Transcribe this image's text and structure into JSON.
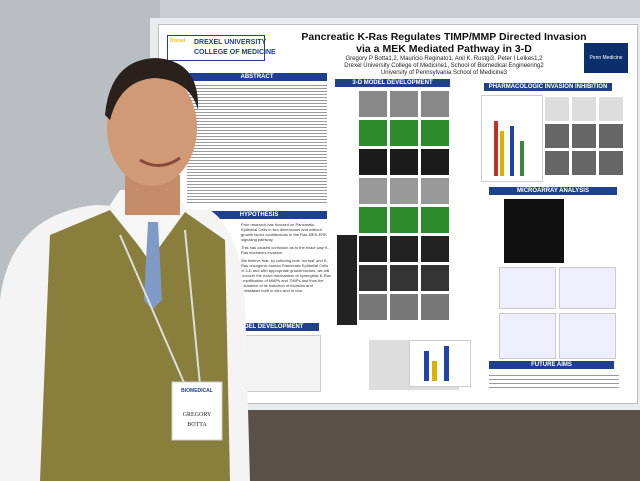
{
  "poster": {
    "logo": {
      "line1": "DREXEL UNIVERSITY",
      "line2": "COLLEGE OF MEDICINE",
      "mark": "Drexel"
    },
    "title": "Pancreatic K-Ras Regulates TIMP/MMP Directed Invasion via a MEK Mediated Pathway in 3-D",
    "authors": "Gregory P Botta1,2, Mauricio Reginato1, Anil K. Rustgi3, Peter I Lelkes1,2",
    "affiliations": [
      "Drexel University College of Medicine1, School of Biomedical Engineering2",
      "University of Pennsylvania School of Medicine3"
    ],
    "penn": "Penn Medicine",
    "sections": {
      "abstract": "ABSTRACT",
      "hypothesis": "HYPOTHESIS",
      "model_3d": "3-D MODEL DEVELOPMENT",
      "pharmacologic": "PHARMACOLOGIC INVASION INHIBITION",
      "microarray": "MICROARRAY ANALYSIS",
      "future": "FUTURE AIMS",
      "model": "MODEL DEVELOPMENT"
    },
    "hypothesis_text": [
      "Prior research has focused on Pancreatic Epithelial Cells in two dimensions and without growth factor contributions to the Ras-MEK-ERK signaling pathway.",
      "This has caused confusion as to the exact way K-Ras increases invasion.",
      "We believe that, by culturing both 'normal' and K-Ras oncogenic human Pancreatic Epithelial Cells in 3-D and with appropriate growth factors, we will uncover the exact mechanism of synergistic K-Ras amplification of MMPs and TIMPs and thus the causation of its induction of invasion and metastasis both in vitro and in vivo."
    ]
  },
  "name_tag": {
    "event": "BIOMEDICAL",
    "first": "GREGORY",
    "last": "BOTTA"
  }
}
